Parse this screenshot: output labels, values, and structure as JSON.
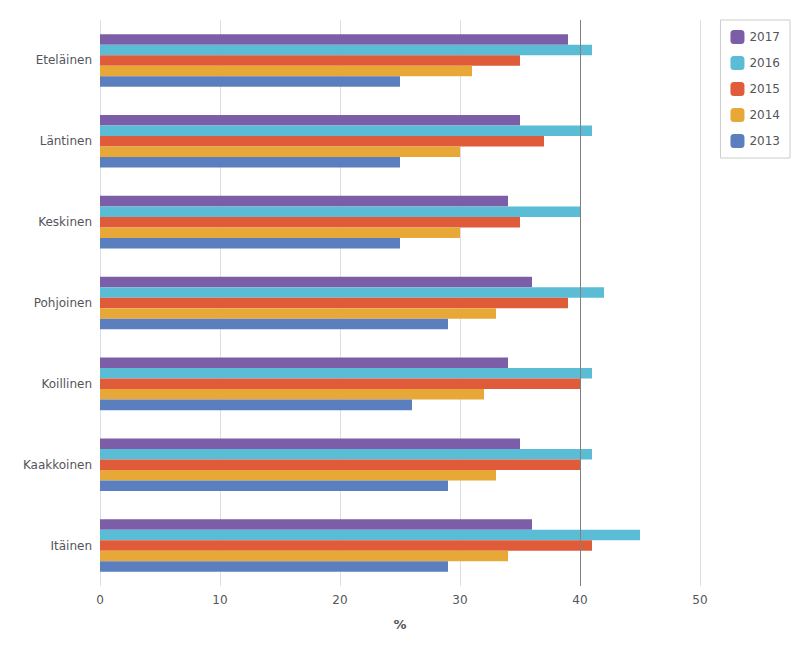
{
  "chart_data": {
    "type": "bar",
    "orientation": "horizontal",
    "categories": [
      "Eteläinen",
      "Läntinen",
      "Keskinen",
      "Pohjoinen",
      "Koillinen",
      "Kaakkoinen",
      "Itäinen"
    ],
    "series": [
      {
        "name": "2017",
        "color": "#7B5EA7",
        "values": [
          39,
          35,
          34,
          36,
          34,
          35,
          36
        ]
      },
      {
        "name": "2016",
        "color": "#5BBCD6",
        "values": [
          41,
          41,
          40,
          42,
          41,
          41,
          45
        ]
      },
      {
        "name": "2015",
        "color": "#E05B3A",
        "values": [
          35,
          37,
          35,
          39,
          40,
          40,
          41
        ]
      },
      {
        "name": "2014",
        "color": "#E8A838",
        "values": [
          31,
          30,
          30,
          33,
          32,
          33,
          34
        ]
      },
      {
        "name": "2013",
        "color": "#5B7FBE",
        "values": [
          25,
          25,
          25,
          29,
          26,
          29,
          29
        ]
      }
    ],
    "xlabel": "%",
    "xlim": [
      0,
      50
    ],
    "xticks": [
      0,
      10,
      20,
      30,
      40,
      50
    ],
    "vlines": [
      40
    ],
    "grid": true,
    "legend": "right"
  }
}
